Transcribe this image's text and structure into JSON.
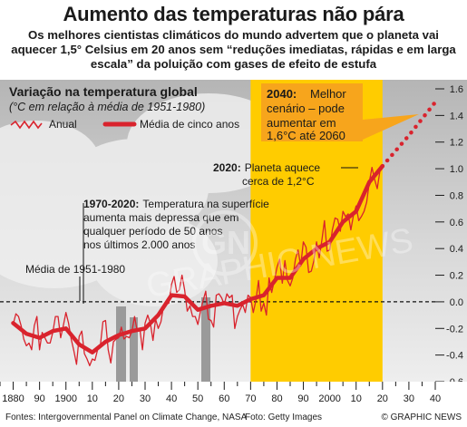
{
  "header": {
    "title": "Aumento das temperaturas não pára",
    "subtitle": "Os melhores cientistas climáticos do mundo advertem que o planeta vai aquecer 1,5° Celsius em 20 anos sem “reduções imediatas, rápidas e em larga escala” da poluição com gases de efeito de estufa"
  },
  "colors": {
    "series": "#d9232d",
    "highlight": "#ffcc00",
    "callout": "#f7a51c",
    "sky": "#bdbdbd"
  },
  "chart_data": {
    "type": "line",
    "title": "Variação na temperatura global",
    "subtitle": "(°C em relação à média de 1951-1980)",
    "xlim": [
      1875,
      2040
    ],
    "ylim": [
      -0.6,
      1.6
    ],
    "x_ticks": [
      {
        "value": 1880,
        "label": "1880"
      },
      {
        "value": 1890,
        "label": "90"
      },
      {
        "value": 1900,
        "label": "1900"
      },
      {
        "value": 1910,
        "label": "10"
      },
      {
        "value": 1920,
        "label": "20"
      },
      {
        "value": 1930,
        "label": "30"
      },
      {
        "value": 1940,
        "label": "40"
      },
      {
        "value": 1950,
        "label": "50"
      },
      {
        "value": 1960,
        "label": "60"
      },
      {
        "value": 1970,
        "label": "70"
      },
      {
        "value": 1980,
        "label": "80"
      },
      {
        "value": 1990,
        "label": "90"
      },
      {
        "value": 2000,
        "label": "2000"
      },
      {
        "value": 2010,
        "label": "10"
      },
      {
        "value": 2020,
        "label": "20"
      },
      {
        "value": 2030,
        "label": "30"
      },
      {
        "value": 2040,
        "label": "40"
      }
    ],
    "y_ticks": [
      {
        "value": 1.6,
        "label": "1.6"
      },
      {
        "value": 1.4,
        "label": "1.4"
      },
      {
        "value": 1.2,
        "label": "1.2"
      },
      {
        "value": 1.0,
        "label": "1.0"
      },
      {
        "value": 0.8,
        "label": "0.8"
      },
      {
        "value": 0.6,
        "label": "0.6"
      },
      {
        "value": 0.4,
        "label": "0.4"
      },
      {
        "value": 0.2,
        "label": "0.2"
      },
      {
        "value": 0.0,
        "label": "0.0"
      },
      {
        "value": -0.2,
        "label": "-0.2"
      },
      {
        "value": -0.4,
        "label": "-0.4"
      },
      {
        "value": -0.6,
        "label": "-0.6"
      }
    ],
    "legend": {
      "annual": "Anual",
      "five_year": "Média de cinco anos"
    },
    "baseline": {
      "value": 0.0,
      "label": "Média de 1951-1980"
    },
    "highlight_range": [
      1970,
      2020
    ],
    "series": [
      {
        "name": "Anual",
        "x": [
          1880,
          1881,
          1882,
          1883,
          1884,
          1885,
          1886,
          1887,
          1888,
          1889,
          1890,
          1891,
          1892,
          1893,
          1894,
          1895,
          1896,
          1897,
          1898,
          1899,
          1900,
          1901,
          1902,
          1903,
          1904,
          1905,
          1906,
          1907,
          1908,
          1909,
          1910,
          1911,
          1912,
          1913,
          1914,
          1915,
          1916,
          1917,
          1918,
          1919,
          1920,
          1921,
          1922,
          1923,
          1924,
          1925,
          1926,
          1927,
          1928,
          1929,
          1930,
          1931,
          1932,
          1933,
          1934,
          1935,
          1936,
          1937,
          1938,
          1939,
          1940,
          1941,
          1942,
          1943,
          1944,
          1945,
          1946,
          1947,
          1948,
          1949,
          1950,
          1951,
          1952,
          1953,
          1954,
          1955,
          1956,
          1957,
          1958,
          1959,
          1960,
          1961,
          1962,
          1963,
          1964,
          1965,
          1966,
          1967,
          1968,
          1969,
          1970,
          1971,
          1972,
          1973,
          1974,
          1975,
          1976,
          1977,
          1978,
          1979,
          1980,
          1981,
          1982,
          1983,
          1984,
          1985,
          1986,
          1987,
          1988,
          1989,
          1990,
          1991,
          1992,
          1993,
          1994,
          1995,
          1996,
          1997,
          1998,
          1999,
          2000,
          2001,
          2002,
          2003,
          2004,
          2005,
          2006,
          2007,
          2008,
          2009,
          2010,
          2011,
          2012,
          2013,
          2014,
          2015,
          2016,
          2017,
          2018,
          2019,
          2020
        ],
        "values": [
          -0.17,
          -0.09,
          -0.11,
          -0.18,
          -0.28,
          -0.33,
          -0.31,
          -0.36,
          -0.18,
          -0.11,
          -0.36,
          -0.23,
          -0.27,
          -0.31,
          -0.31,
          -0.23,
          -0.11,
          -0.11,
          -0.27,
          -0.18,
          -0.08,
          -0.16,
          -0.28,
          -0.37,
          -0.47,
          -0.26,
          -0.22,
          -0.39,
          -0.43,
          -0.48,
          -0.43,
          -0.44,
          -0.36,
          -0.34,
          -0.15,
          -0.14,
          -0.36,
          -0.46,
          -0.3,
          -0.28,
          -0.27,
          -0.19,
          -0.28,
          -0.26,
          -0.27,
          -0.22,
          -0.11,
          -0.22,
          -0.2,
          -0.36,
          -0.16,
          -0.1,
          -0.16,
          -0.29,
          -0.13,
          -0.2,
          -0.15,
          -0.03,
          -0.02,
          -0.01,
          0.13,
          0.19,
          0.07,
          0.09,
          0.2,
          0.09,
          -0.07,
          -0.03,
          -0.11,
          -0.11,
          -0.17,
          -0.07,
          0.01,
          0.08,
          -0.13,
          -0.14,
          -0.19,
          0.05,
          0.06,
          0.03,
          -0.02,
          0.06,
          0.03,
          0.05,
          -0.2,
          -0.11,
          -0.06,
          -0.02,
          -0.08,
          0.05,
          0.03,
          -0.08,
          0.01,
          0.16,
          -0.07,
          -0.01,
          -0.1,
          0.18,
          0.07,
          0.16,
          0.26,
          0.32,
          0.14,
          0.31,
          0.16,
          0.12,
          0.18,
          0.32,
          0.39,
          0.27,
          0.45,
          0.41,
          0.22,
          0.23,
          0.31,
          0.45,
          0.33,
          0.46,
          0.61,
          0.38,
          0.39,
          0.54,
          0.63,
          0.62,
          0.53,
          0.68,
          0.64,
          0.66,
          0.54,
          0.65,
          0.72,
          0.61,
          0.64,
          0.68,
          0.75,
          0.9,
          1.01,
          0.92,
          0.85,
          0.98,
          1.02
        ]
      },
      {
        "name": "Média de cinco anos",
        "x": [
          1880,
          1885,
          1890,
          1895,
          1900,
          1905,
          1910,
          1915,
          1920,
          1925,
          1930,
          1935,
          1940,
          1945,
          1950,
          1955,
          1960,
          1965,
          1970,
          1975,
          1980,
          1985,
          1990,
          1995,
          2000,
          2005,
          2010,
          2015,
          2020
        ],
        "values": [
          -0.16,
          -0.24,
          -0.27,
          -0.22,
          -0.2,
          -0.32,
          -0.38,
          -0.3,
          -0.25,
          -0.22,
          -0.2,
          -0.1,
          0.05,
          0.04,
          -0.06,
          -0.03,
          -0.01,
          -0.03,
          0.02,
          0.05,
          0.18,
          0.18,
          0.32,
          0.4,
          0.45,
          0.6,
          0.68,
          0.9,
          1.02
        ]
      },
      {
        "name": "projeção",
        "x": [
          2020,
          2030,
          2040
        ],
        "values": [
          1.02,
          1.25,
          1.5
        ]
      }
    ],
    "annotations": [
      {
        "id": "ann-2040",
        "heading": "2040:",
        "text": "Melhor cenário – pode aumentar em 1,6°C até 2060"
      },
      {
        "id": "ann-2020",
        "heading": "2020:",
        "text": "Planeta aquece cerca de 1,2°C"
      },
      {
        "id": "ann-1970",
        "heading": "1970-2020:",
        "text": "Temperatura na superfície aumenta mais depressa que em qualquer período de 50 anos nos últimos 2.000 anos"
      }
    ]
  },
  "footer": {
    "source": "Fontes: Intergovernmental Panel on Climate Change, NASA",
    "photo": "Foto: Getty Images",
    "copyright": "© GRAPHIC NEWS"
  }
}
